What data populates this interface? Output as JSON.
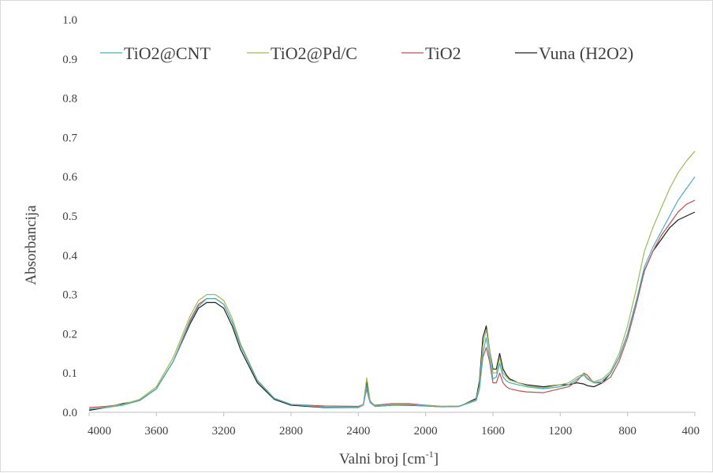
{
  "chart_data": {
    "type": "line",
    "title": "",
    "xlabel": "Valni broj [cm",
    "xlabel_sup": "-1",
    "xlabel_end": "]",
    "ylabel": "Absorbancija",
    "xlim": [
      4000,
      400
    ],
    "ylim": [
      0,
      1.0
    ],
    "x_ticks": [
      "4000",
      "3600",
      "3200",
      "2800",
      "2400",
      "2000",
      "1600",
      "1200",
      "800",
      "400"
    ],
    "y_ticks": [
      "0.0",
      "0.1",
      "0.2",
      "0.3",
      "0.4",
      "0.5",
      "0.6",
      "0.7",
      "0.8",
      "0.9",
      "1.0"
    ],
    "grid": false,
    "legend_position": "top",
    "series": [
      {
        "name": "TiO2@CNT",
        "color": "#4bacc6",
        "x": [
          4000,
          3900,
          3800,
          3700,
          3600,
          3500,
          3400,
          3350,
          3300,
          3250,
          3200,
          3150,
          3100,
          3000,
          2900,
          2800,
          2600,
          2400,
          2370,
          2350,
          2340,
          2330,
          2300,
          2200,
          2100,
          2000,
          1900,
          1800,
          1700,
          1680,
          1660,
          1640,
          1620,
          1600,
          1580,
          1560,
          1540,
          1520,
          1500,
          1450,
          1400,
          1300,
          1200,
          1150,
          1100,
          1060,
          1040,
          1000,
          950,
          900,
          850,
          800,
          750,
          700,
          650,
          600,
          550,
          500,
          450,
          400
        ],
        "y": [
          0.008,
          0.012,
          0.018,
          0.03,
          0.06,
          0.13,
          0.23,
          0.27,
          0.29,
          0.29,
          0.275,
          0.23,
          0.17,
          0.08,
          0.035,
          0.02,
          0.013,
          0.012,
          0.018,
          0.065,
          0.045,
          0.025,
          0.015,
          0.018,
          0.019,
          0.016,
          0.014,
          0.015,
          0.03,
          0.06,
          0.15,
          0.19,
          0.14,
          0.085,
          0.09,
          0.125,
          0.09,
          0.08,
          0.075,
          0.07,
          0.065,
          0.06,
          0.065,
          0.07,
          0.085,
          0.095,
          0.085,
          0.075,
          0.08,
          0.1,
          0.14,
          0.2,
          0.28,
          0.37,
          0.42,
          0.46,
          0.5,
          0.54,
          0.57,
          0.6
        ]
      },
      {
        "name": "TiO2@Pd/C",
        "color": "#9bbb59",
        "x": [
          4000,
          3900,
          3800,
          3700,
          3600,
          3500,
          3400,
          3350,
          3300,
          3250,
          3200,
          3150,
          3100,
          3000,
          2900,
          2800,
          2600,
          2400,
          2370,
          2350,
          2340,
          2330,
          2300,
          2200,
          2100,
          2000,
          1900,
          1800,
          1700,
          1680,
          1660,
          1640,
          1620,
          1600,
          1580,
          1560,
          1540,
          1520,
          1500,
          1450,
          1400,
          1300,
          1200,
          1150,
          1100,
          1060,
          1040,
          1000,
          950,
          900,
          850,
          800,
          750,
          700,
          650,
          600,
          550,
          500,
          450,
          400
        ],
        "y": [
          0.008,
          0.013,
          0.02,
          0.033,
          0.065,
          0.14,
          0.245,
          0.285,
          0.3,
          0.3,
          0.285,
          0.24,
          0.175,
          0.082,
          0.036,
          0.02,
          0.013,
          0.013,
          0.02,
          0.088,
          0.06,
          0.03,
          0.016,
          0.02,
          0.02,
          0.017,
          0.015,
          0.016,
          0.032,
          0.07,
          0.17,
          0.21,
          0.16,
          0.1,
          0.1,
          0.14,
          0.1,
          0.09,
          0.082,
          0.075,
          0.068,
          0.062,
          0.07,
          0.075,
          0.09,
          0.098,
          0.088,
          0.078,
          0.085,
          0.105,
          0.15,
          0.22,
          0.31,
          0.41,
          0.47,
          0.52,
          0.57,
          0.61,
          0.64,
          0.665
        ]
      },
      {
        "name": "TiO2",
        "color": "#c0504d",
        "x": [
          4000,
          3900,
          3800,
          3700,
          3600,
          3500,
          3400,
          3350,
          3300,
          3250,
          3200,
          3150,
          3100,
          3000,
          2900,
          2800,
          2600,
          2400,
          2370,
          2350,
          2340,
          2330,
          2300,
          2200,
          2100,
          2000,
          1900,
          1800,
          1700,
          1680,
          1660,
          1640,
          1620,
          1600,
          1580,
          1560,
          1540,
          1520,
          1500,
          1450,
          1400,
          1300,
          1200,
          1150,
          1100,
          1060,
          1040,
          1000,
          950,
          900,
          850,
          800,
          750,
          700,
          650,
          600,
          550,
          500,
          450,
          400
        ],
        "y": [
          0.012,
          0.015,
          0.02,
          0.03,
          0.06,
          0.13,
          0.235,
          0.275,
          0.29,
          0.29,
          0.275,
          0.23,
          0.17,
          0.082,
          0.036,
          0.02,
          0.016,
          0.015,
          0.02,
          0.06,
          0.04,
          0.025,
          0.018,
          0.022,
          0.022,
          0.018,
          0.015,
          0.016,
          0.03,
          0.06,
          0.14,
          0.165,
          0.13,
          0.075,
          0.075,
          0.1,
          0.075,
          0.065,
          0.06,
          0.055,
          0.052,
          0.05,
          0.06,
          0.065,
          0.08,
          0.1,
          0.095,
          0.075,
          0.075,
          0.09,
          0.13,
          0.19,
          0.27,
          0.36,
          0.41,
          0.45,
          0.48,
          0.51,
          0.53,
          0.54
        ]
      },
      {
        "name": "Vuna (H2O2)",
        "color": "#1f1f1f",
        "x": [
          4000,
          3900,
          3800,
          3700,
          3600,
          3500,
          3400,
          3350,
          3300,
          3250,
          3200,
          3150,
          3100,
          3000,
          2900,
          2800,
          2600,
          2400,
          2370,
          2350,
          2340,
          2330,
          2300,
          2200,
          2100,
          2000,
          1900,
          1800,
          1700,
          1680,
          1660,
          1640,
          1620,
          1600,
          1580,
          1560,
          1540,
          1520,
          1500,
          1450,
          1400,
          1300,
          1200,
          1150,
          1100,
          1060,
          1040,
          1000,
          950,
          900,
          850,
          800,
          750,
          700,
          650,
          600,
          550,
          500,
          450,
          400
        ],
        "y": [
          0.005,
          0.012,
          0.022,
          0.03,
          0.06,
          0.13,
          0.225,
          0.265,
          0.28,
          0.28,
          0.265,
          0.22,
          0.16,
          0.075,
          0.033,
          0.018,
          0.012,
          0.012,
          0.02,
          0.08,
          0.05,
          0.025,
          0.015,
          0.018,
          0.018,
          0.016,
          0.014,
          0.015,
          0.035,
          0.08,
          0.19,
          0.22,
          0.16,
          0.11,
          0.11,
          0.15,
          0.11,
          0.095,
          0.085,
          0.075,
          0.07,
          0.065,
          0.07,
          0.07,
          0.075,
          0.072,
          0.068,
          0.065,
          0.075,
          0.1,
          0.14,
          0.2,
          0.28,
          0.36,
          0.41,
          0.44,
          0.47,
          0.49,
          0.5,
          0.51
        ]
      }
    ]
  }
}
